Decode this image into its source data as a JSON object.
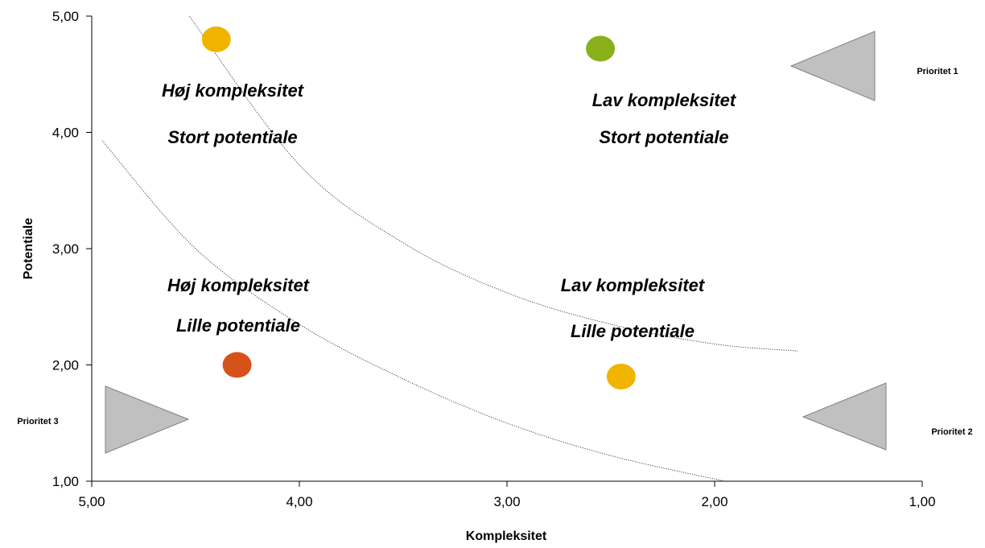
{
  "chart_data": {
    "type": "scatter",
    "xlabel": "Kompleksitet",
    "ylabel": "Potentiale",
    "xlim": [
      5,
      1
    ],
    "ylim": [
      1,
      5
    ],
    "x_reversed": true,
    "x_ticks": [
      "5,00",
      "4,00",
      "3,00",
      "2,00",
      "1,00"
    ],
    "y_ticks": [
      "1,00",
      "2,00",
      "3,00",
      "4,00",
      "5,00"
    ],
    "grid": false,
    "points": [
      {
        "x": 4.4,
        "y": 4.8,
        "color": "#f0b400"
      },
      {
        "x": 2.55,
        "y": 4.72,
        "color": "#8ab019"
      },
      {
        "x": 4.3,
        "y": 2.0,
        "color": "#d6521b"
      },
      {
        "x": 2.45,
        "y": 1.9,
        "color": "#f0b400"
      }
    ],
    "annotations": [
      {
        "line1": "Høj kompleksitet",
        "line2": "Stort  potentiale"
      },
      {
        "line1": "Lav kompleksitet",
        "line2": "Stort potentiale"
      },
      {
        "line1": "Høj kompleksitet",
        "line2": "Lille  potentiale"
      },
      {
        "line1": "Lav kompleksitet",
        "line2": "Lille potentiale"
      }
    ],
    "priorities": [
      "Prioritet 1",
      "Prioritet 2",
      "Prioritet 3"
    ],
    "curves": [
      {
        "points": [
          [
            4.53,
            5.0
          ],
          [
            4.0,
            3.72
          ],
          [
            3.5,
            3.05
          ],
          [
            3.0,
            2.62
          ],
          [
            2.5,
            2.35
          ],
          [
            2.0,
            2.18
          ],
          [
            1.6,
            2.12
          ]
        ]
      },
      {
        "points": [
          [
            4.95,
            3.93
          ],
          [
            4.5,
            3.0
          ],
          [
            4.0,
            2.35
          ],
          [
            3.5,
            1.88
          ],
          [
            3.0,
            1.5
          ],
          [
            2.5,
            1.22
          ],
          [
            1.95,
            1.0
          ]
        ]
      }
    ]
  }
}
